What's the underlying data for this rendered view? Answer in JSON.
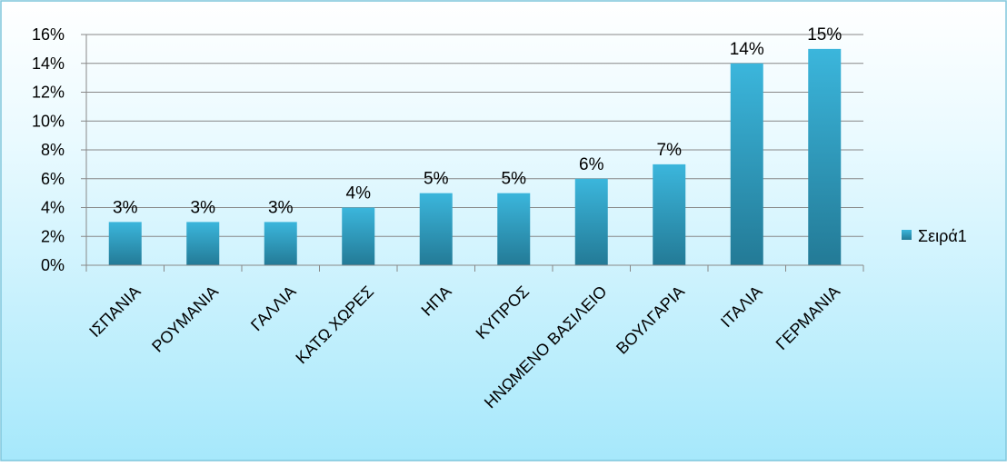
{
  "chart_data": {
    "type": "bar",
    "title": "",
    "xlabel": "",
    "ylabel": "",
    "categories": [
      "ΙΣΠΑΝΙΑ",
      "ΡΟΥΜΑΝΙΑ",
      "ΓΑΛΛΙΑ",
      "ΚΑΤΩ ΧΩΡΕΣ",
      "ΗΠΑ",
      "ΚΥΠΡΟΣ",
      "ΗΝΩΜΕΝΟ ΒΑΣΙΛΕΙΟ",
      "ΒΟΥΛΓΑΡΙΑ",
      "ΙΤΑΛΙΑ",
      "ΓΕΡΜΑΝΙΑ"
    ],
    "series": [
      {
        "name": "Σειρά1",
        "values": [
          3,
          3,
          3,
          4,
          5,
          5,
          6,
          7,
          14,
          15
        ]
      }
    ],
    "data_labels": [
      "3%",
      "3%",
      "3%",
      "4%",
      "5%",
      "5%",
      "6%",
      "7%",
      "14%",
      "15%"
    ],
    "ylim": [
      0,
      16
    ],
    "yticks": [
      0,
      2,
      4,
      6,
      8,
      10,
      12,
      14,
      16
    ],
    "ytick_labels": [
      "0%",
      "2%",
      "4%",
      "6%",
      "8%",
      "10%",
      "12%",
      "14%",
      "16%"
    ],
    "grid": true,
    "legend_position": "right",
    "colors": {
      "bar_top": "#3bb6dc",
      "bar_bottom": "#237a96",
      "gridline": "#888888",
      "background_top": "#ffffff",
      "background_bottom": "#a6e8fb",
      "border": "#7fc6dc"
    }
  }
}
